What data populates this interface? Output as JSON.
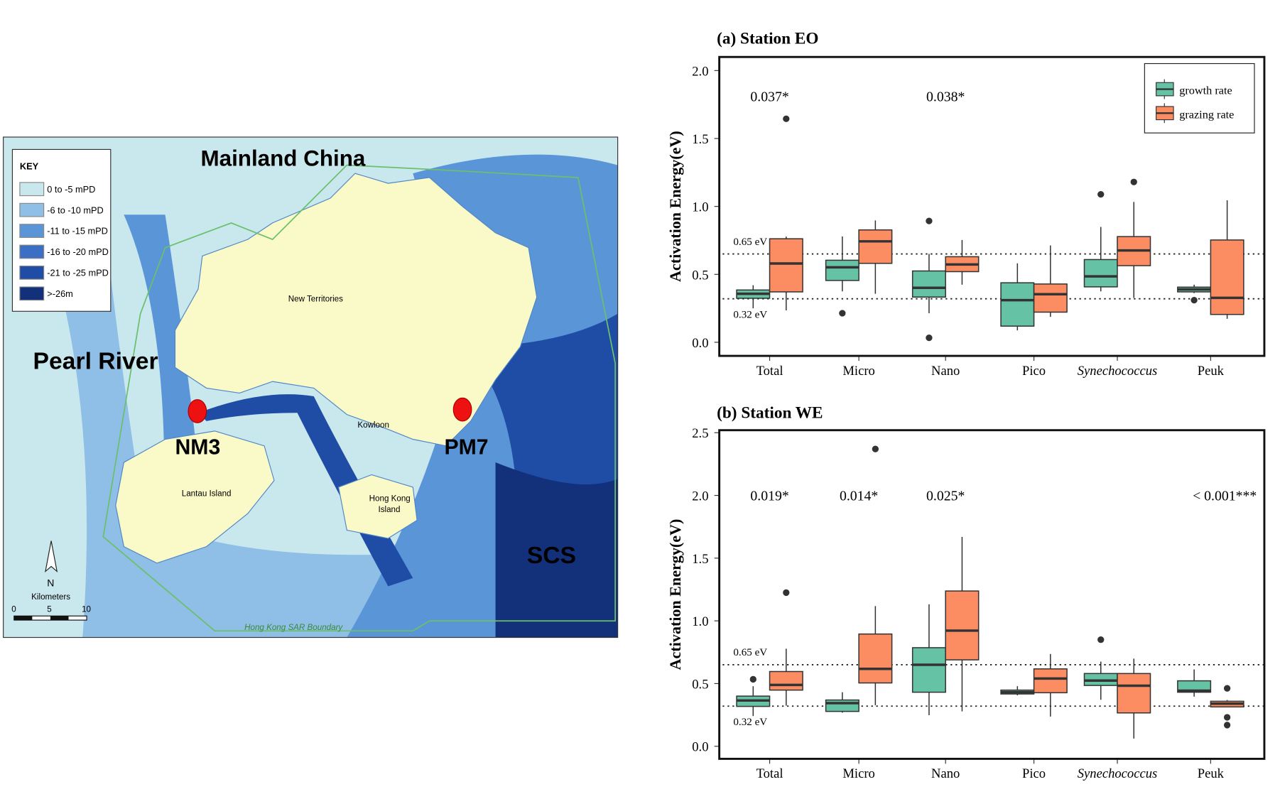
{
  "map": {
    "labels": {
      "mainland": "Mainland China",
      "pearl": "Pearl River",
      "nm3": "NM3",
      "pm7": "PM7",
      "scs": "SCS",
      "new_territories": "New Territories",
      "kowloon": "Kowloon",
      "lantau": "Lantau Island",
      "hk_island_1": "Hong Kong",
      "hk_island_2": "Island",
      "boundary": "Hong Kong SAR Boundary"
    },
    "key": {
      "title": "KEY",
      "items": [
        {
          "label": "0 to -5 mPD",
          "color": "#c9e8ee"
        },
        {
          "label": "-6 to -10 mPD",
          "color": "#8fbfe6"
        },
        {
          "label": "-11 to -15 mPD",
          "color": "#5a95d8"
        },
        {
          "label": "-16 to -20 mPD",
          "color": "#3a6fc4"
        },
        {
          "label": "-21 to -25 mPD",
          "color": "#1f4da6"
        },
        {
          "label": ">-26m",
          "color": "#13307a"
        }
      ]
    },
    "north": "N",
    "scale": {
      "title": "Kilometers",
      "ticks": [
        "0",
        "5",
        "10"
      ]
    }
  },
  "chart_data": [
    {
      "type": "box",
      "title": "(a) Station EO",
      "ylabel": "Activation Energy(eV)",
      "ylim": [
        -0.1,
        2.1
      ],
      "yticks": [
        "0.0",
        "0.5",
        "1.0",
        "1.5",
        "2.0"
      ],
      "ytick_values": [
        0,
        0.5,
        1.0,
        1.5,
        2.0
      ],
      "categories": [
        "Total",
        "Micro",
        "Nano",
        "Pico",
        "Synechococcus",
        "Peuk"
      ],
      "reference_lines": [
        {
          "value": 0.65,
          "label": "0.65 eV"
        },
        {
          "value": 0.32,
          "label": "0.32 eV"
        }
      ],
      "legend": {
        "position": "top-right",
        "entries": [
          "growth rate",
          "grazing rate"
        ]
      },
      "colors": {
        "growth": "#66c2a5",
        "grazing": "#fc8d62"
      },
      "annotations": [
        {
          "category": "Total",
          "text": "0.037*"
        },
        {
          "category": "Nano",
          "text": "0.038*"
        }
      ],
      "series": [
        {
          "name": "growth rate",
          "boxes": [
            {
              "low": 0.25,
              "q1": 0.324,
              "median": 0.357,
              "q3": 0.385,
              "high": 0.42,
              "outliers": []
            },
            {
              "low": 0.375,
              "q1": 0.455,
              "median": 0.552,
              "q3": 0.604,
              "high": 0.779,
              "outliers": [
                0.214
              ]
            },
            {
              "low": 0.214,
              "q1": 0.333,
              "median": 0.401,
              "q3": 0.525,
              "high": 0.651,
              "outliers": [
                0.893,
                0.033
              ]
            },
            {
              "low": 0.088,
              "q1": 0.119,
              "median": 0.31,
              "q3": 0.438,
              "high": 0.581,
              "outliers": []
            },
            {
              "low": 0.375,
              "q1": 0.408,
              "median": 0.485,
              "q3": 0.609,
              "high": 0.849,
              "outliers": [
                1.089
              ]
            },
            {
              "low": 0.362,
              "q1": 0.371,
              "median": 0.389,
              "q3": 0.406,
              "high": 0.424,
              "outliers": [
                0.31
              ]
            }
          ]
        },
        {
          "name": "grazing rate",
          "boxes": [
            {
              "low": 0.235,
              "q1": 0.371,
              "median": 0.58,
              "q3": 0.762,
              "high": 0.778,
              "outliers": [
                1.645
              ]
            },
            {
              "low": 0.357,
              "q1": 0.581,
              "median": 0.743,
              "q3": 0.827,
              "high": 0.897,
              "outliers": []
            },
            {
              "low": 0.424,
              "q1": 0.52,
              "median": 0.573,
              "q3": 0.63,
              "high": 0.753,
              "outliers": []
            },
            {
              "low": 0.187,
              "q1": 0.222,
              "median": 0.354,
              "q3": 0.429,
              "high": 0.713,
              "outliers": []
            },
            {
              "low": 0.327,
              "q1": 0.564,
              "median": 0.676,
              "q3": 0.778,
              "high": 1.033,
              "outliers": [
                1.18
              ]
            },
            {
              "low": 0.173,
              "q1": 0.205,
              "median": 0.327,
              "q3": 0.753,
              "high": 1.045,
              "outliers": []
            }
          ]
        }
      ]
    },
    {
      "type": "box",
      "title": "(b) Station WE",
      "ylabel": "Activation Energy(eV)",
      "ylim": [
        -0.1,
        2.52
      ],
      "yticks": [
        "0.0",
        "0.5",
        "1.0",
        "1.5",
        "2.0",
        "2.5"
      ],
      "ytick_values": [
        0,
        0.5,
        1.0,
        1.5,
        2.0,
        2.5
      ],
      "categories": [
        "Total",
        "Micro",
        "Nano",
        "Pico",
        "Synechococcus",
        "Peuk"
      ],
      "reference_lines": [
        {
          "value": 0.65,
          "label": "0.65 eV"
        },
        {
          "value": 0.32,
          "label": "0.32 eV"
        }
      ],
      "colors": {
        "growth": "#66c2a5",
        "grazing": "#fc8d62"
      },
      "annotations": [
        {
          "category": "Total",
          "text": "0.019*"
        },
        {
          "category": "Micro",
          "text": "0.014*"
        },
        {
          "category": "Nano",
          "text": "0.025*"
        },
        {
          "category": "Peuk",
          "text": "< 0.001***"
        }
      ],
      "series": [
        {
          "name": "growth rate",
          "boxes": [
            {
              "low": 0.241,
              "q1": 0.318,
              "median": 0.365,
              "q3": 0.4,
              "high": 0.479,
              "outliers": [
                0.534
              ]
            },
            {
              "low": 0.268,
              "q1": 0.278,
              "median": 0.344,
              "q3": 0.369,
              "high": 0.431,
              "outliers": []
            },
            {
              "low": 0.248,
              "q1": 0.431,
              "median": 0.65,
              "q3": 0.786,
              "high": 1.132,
              "outliers": []
            },
            {
              "low": 0.406,
              "q1": 0.417,
              "median": 0.431,
              "q3": 0.448,
              "high": 0.479,
              "outliers": []
            },
            {
              "low": 0.371,
              "q1": 0.485,
              "median": 0.524,
              "q3": 0.58,
              "high": 0.675,
              "outliers": [
                0.85
              ]
            },
            {
              "low": 0.396,
              "q1": 0.431,
              "median": 0.443,
              "q3": 0.522,
              "high": 0.613,
              "outliers": []
            }
          ]
        },
        {
          "name": "grazing rate",
          "boxes": [
            {
              "low": 0.324,
              "q1": 0.448,
              "median": 0.489,
              "q3": 0.596,
              "high": 0.778,
              "outliers": [
                1.225
              ]
            },
            {
              "low": 0.328,
              "q1": 0.505,
              "median": 0.617,
              "q3": 0.895,
              "high": 1.118,
              "outliers": [
                2.37
              ]
            },
            {
              "low": 0.278,
              "q1": 0.689,
              "median": 0.922,
              "q3": 1.238,
              "high": 1.669,
              "outliers": []
            },
            {
              "low": 0.237,
              "q1": 0.427,
              "median": 0.54,
              "q3": 0.617,
              "high": 0.736,
              "outliers": []
            },
            {
              "low": 0.062,
              "q1": 0.266,
              "median": 0.483,
              "q3": 0.58,
              "high": 0.699,
              "outliers": []
            },
            {
              "low": 0.314,
              "q1": 0.314,
              "median": 0.34,
              "q3": 0.359,
              "high": 0.369,
              "outliers": [
                0.462,
                0.231,
                0.169
              ]
            }
          ]
        }
      ]
    }
  ]
}
